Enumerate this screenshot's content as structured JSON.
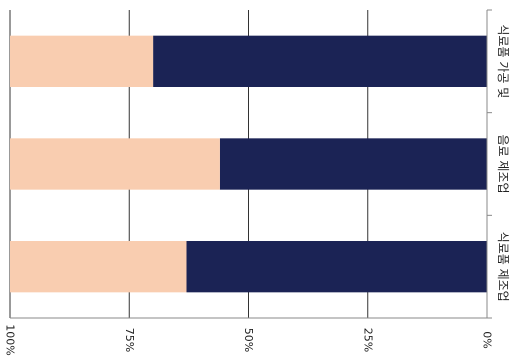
{
  "chart_data": {
    "type": "bar",
    "orientation": "horizontal",
    "stacked": true,
    "percent_stacked": true,
    "categories": [
      "식료품 가공 및",
      "음료 제조업",
      "식료품 제조업"
    ],
    "series": [
      {
        "values": [
          70,
          56,
          63
        ],
        "color": "#1b2355"
      },
      {
        "values": [
          30,
          44,
          37
        ],
        "color": "#f9cdb0"
      }
    ],
    "xlim": [
      0,
      100
    ],
    "ticks": [
      0,
      25,
      50,
      75,
      100
    ],
    "tick_labels": [
      "0%",
      "25%",
      "50%",
      "75%",
      "100%"
    ],
    "grid": true,
    "title": "",
    "xlabel": "",
    "ylabel": "",
    "rotated_90": true,
    "axis_color": "#888888",
    "grid_color": "#333333"
  }
}
